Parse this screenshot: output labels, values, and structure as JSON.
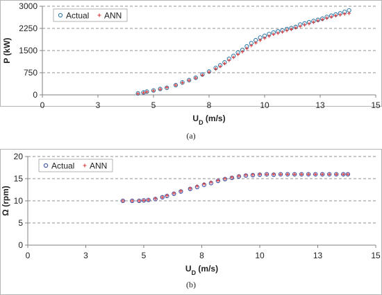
{
  "chart_data": [
    {
      "type": "scatter",
      "panel_label": "(a)",
      "xlabel_main": "U",
      "xlabel_sub": "D",
      "xlabel_unit": " (m/s)",
      "ylabel": "P (kW)",
      "xlim": [
        0,
        15
      ],
      "ylim": [
        0,
        3000
      ],
      "x_ticks": [
        0,
        2.5,
        5,
        7.5,
        10,
        12.5,
        15
      ],
      "x_tick_labels": [
        "0",
        "3",
        "5",
        "8",
        "10",
        "13",
        "15"
      ],
      "y_ticks": [
        0,
        750,
        1500,
        2250,
        3000
      ],
      "y_tick_labels": [
        "0",
        "750",
        "1500",
        "2250",
        "3000"
      ],
      "grid": "horizontal dashed",
      "legend_placement": "top-left",
      "colors": {
        "actual": "#2f79a8",
        "ann": "#d9383a"
      },
      "series": [
        {
          "name": "Actual",
          "marker": "circle",
          "x": [
            4.3,
            4.55,
            4.7,
            5.0,
            5.3,
            5.6,
            6.0,
            6.3,
            6.6,
            6.9,
            7.2,
            7.5,
            7.8,
            8.0,
            8.2,
            8.4,
            8.6,
            8.8,
            9.0,
            9.2,
            9.4,
            9.6,
            9.8,
            10.0,
            10.2,
            10.4,
            10.6,
            10.8,
            11.0,
            11.2,
            11.4,
            11.6,
            11.8,
            12.0,
            12.2,
            12.4,
            12.6,
            12.8,
            13.0,
            13.2,
            13.4,
            13.6,
            13.8
          ],
          "y": [
            50,
            80,
            110,
            150,
            200,
            240,
            330,
            420,
            500,
            580,
            690,
            790,
            910,
            1000,
            1100,
            1220,
            1320,
            1430,
            1520,
            1640,
            1750,
            1850,
            1940,
            2000,
            2060,
            2110,
            2150,
            2180,
            2230,
            2260,
            2300,
            2380,
            2420,
            2460,
            2500,
            2540,
            2580,
            2640,
            2680,
            2720,
            2760,
            2810,
            2860
          ]
        },
        {
          "name": "ANN",
          "marker": "plus",
          "x": [
            4.3,
            4.55,
            4.7,
            5.0,
            5.3,
            5.6,
            6.0,
            6.3,
            6.6,
            6.9,
            7.2,
            7.5,
            7.8,
            8.0,
            8.2,
            8.4,
            8.6,
            8.8,
            9.0,
            9.2,
            9.4,
            9.6,
            9.8,
            10.0,
            10.2,
            10.4,
            10.6,
            10.8,
            11.0,
            11.2,
            11.4,
            11.6,
            11.8,
            12.0,
            12.2,
            12.4,
            12.6,
            12.8,
            13.0,
            13.2,
            13.4,
            13.6,
            13.8
          ],
          "y": [
            40,
            70,
            100,
            140,
            190,
            250,
            330,
            410,
            490,
            570,
            670,
            770,
            880,
            960,
            1060,
            1170,
            1270,
            1370,
            1460,
            1570,
            1670,
            1760,
            1850,
            1920,
            1990,
            2050,
            2090,
            2130,
            2180,
            2220,
            2270,
            2320,
            2370,
            2410,
            2460,
            2510,
            2550,
            2600,
            2640,
            2680,
            2710,
            2740,
            2760
          ]
        }
      ]
    },
    {
      "type": "scatter",
      "panel_label": "(b)",
      "xlabel_main": "U",
      "xlabel_sub": "D",
      "xlabel_unit": " (m/s)",
      "ylabel": "Ω (rpm)",
      "xlim": [
        0,
        15
      ],
      "ylim": [
        0,
        20
      ],
      "x_ticks": [
        0,
        2.5,
        5,
        7.5,
        10,
        12.5,
        15
      ],
      "x_tick_labels": [
        "0",
        "3",
        "5",
        "8",
        "10",
        "13",
        "15"
      ],
      "y_ticks": [
        0,
        5,
        10,
        15,
        20
      ],
      "y_tick_labels": [
        "0",
        "5",
        "10",
        "15",
        "20"
      ],
      "grid": "horizontal dashed",
      "legend_placement": "top-left",
      "colors": {
        "actual": "#3a4fa8",
        "ann": "#d9383a"
      },
      "series": [
        {
          "name": "Actual",
          "marker": "circle",
          "x": [
            4.1,
            4.5,
            4.8,
            5.0,
            5.2,
            5.5,
            5.8,
            6.0,
            6.3,
            6.6,
            7.0,
            7.3,
            7.6,
            7.9,
            8.2,
            8.5,
            8.8,
            9.1,
            9.4,
            9.7,
            10.0,
            10.3,
            10.6,
            10.9,
            11.2,
            11.5,
            11.8,
            12.1,
            12.4,
            12.7,
            13.0,
            13.3,
            13.6,
            13.8
          ],
          "y": [
            10.0,
            10.0,
            10.0,
            10.1,
            10.2,
            10.4,
            10.8,
            11.1,
            11.6,
            12.1,
            12.7,
            13.1,
            13.6,
            14.0,
            14.5,
            14.9,
            15.2,
            15.5,
            15.7,
            15.8,
            15.9,
            16.0,
            15.9,
            16.0,
            16.0,
            16.0,
            16.0,
            16.0,
            16.0,
            16.0,
            16.0,
            16.0,
            16.0,
            16.0
          ]
        },
        {
          "name": "ANN",
          "marker": "plus",
          "x": [
            4.1,
            4.5,
            4.8,
            5.0,
            5.2,
            5.5,
            5.8,
            6.0,
            6.3,
            6.6,
            7.0,
            7.3,
            7.6,
            7.9,
            8.2,
            8.5,
            8.8,
            9.1,
            9.4,
            9.7,
            10.0,
            10.3,
            10.6,
            10.9,
            11.2,
            11.5,
            11.8,
            12.1,
            12.4,
            12.7,
            13.0,
            13.3,
            13.6,
            13.8
          ],
          "y": [
            10.0,
            10.0,
            10.0,
            10.1,
            10.2,
            10.5,
            10.8,
            11.2,
            11.7,
            12.2,
            12.8,
            13.3,
            13.8,
            14.2,
            14.6,
            15.0,
            15.3,
            15.6,
            15.8,
            15.9,
            16.0,
            16.0,
            16.0,
            16.0,
            16.0,
            16.0,
            16.0,
            16.0,
            16.0,
            16.0,
            16.0,
            16.0,
            16.0,
            16.0
          ]
        }
      ]
    }
  ]
}
